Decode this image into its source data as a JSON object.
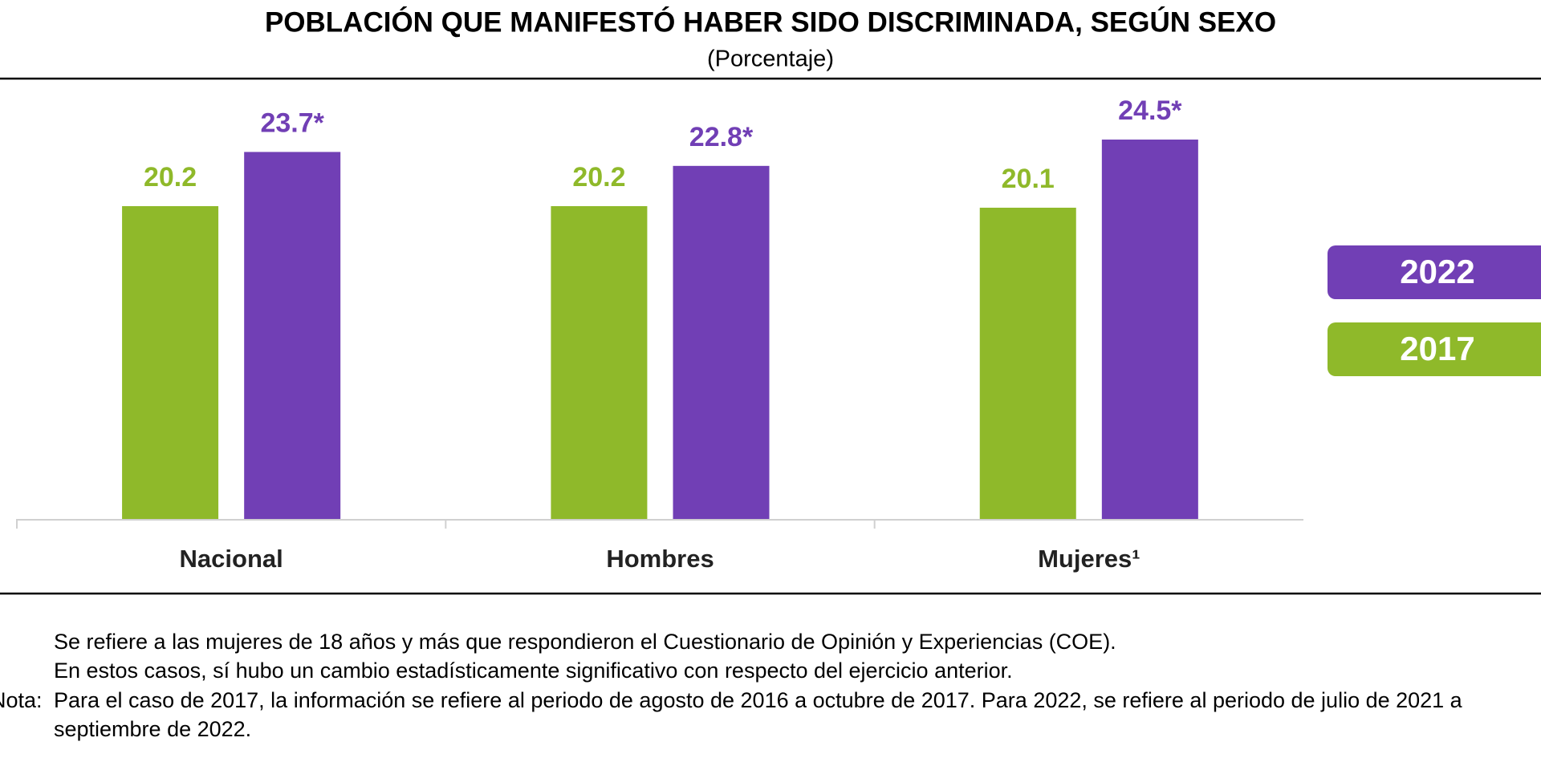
{
  "chart_data": {
    "type": "bar",
    "title": "POBLACIÓN QUE MANIFESTÓ HABER SIDO DISCRIMINADA, SEGÚN SEXO",
    "subtitle": "(Porcentaje)",
    "categories": [
      "Nacional",
      "Hombres",
      "Mujeres¹"
    ],
    "series": [
      {
        "name": "2017",
        "color": "#8fb92a",
        "values": [
          20.2,
          20.2,
          20.1
        ],
        "value_labels": [
          "20.2",
          "20.2",
          "20.1"
        ]
      },
      {
        "name": "2022",
        "color": "#713fb5",
        "values": [
          23.7,
          22.8,
          24.5
        ],
        "value_labels": [
          "23.7*",
          "22.8*",
          "24.5*"
        ]
      }
    ],
    "notes": [
      "Se refiere a las mujeres de 18 años y más que respondieron el Cuestionario de Opinión y Experiencias (COE).",
      "En estos casos, sí hubo un cambio estadísticamente significativo con respecto del ejercicio anterior.",
      "Nota:",
      "Para el caso de 2017, la información se refiere al periodo de agosto de 2016 a octubre de 2017. Para 2022, se refiere al periodo de julio de 2021 a septiembre de 2022."
    ]
  }
}
